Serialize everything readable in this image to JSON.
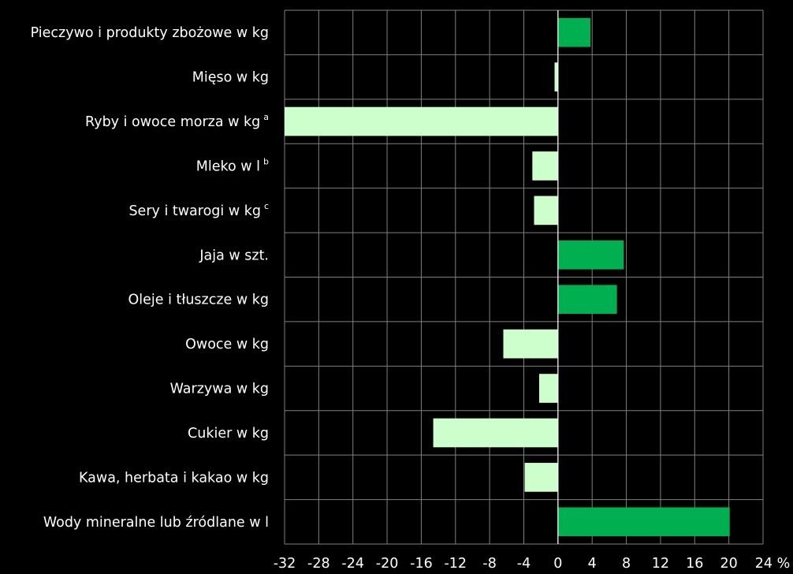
{
  "chart_data": {
    "type": "bar",
    "orientation": "horizontal",
    "categories": [
      {
        "label": "Pieczywo i produkty zbożowe w kg",
        "sup": ""
      },
      {
        "label": "Mięso w kg",
        "sup": ""
      },
      {
        "label": "Ryby i owoce morza w kg",
        "sup": "a"
      },
      {
        "label": "Mleko w l",
        "sup": "b"
      },
      {
        "label": "Sery i twarogi w kg",
        "sup": "c"
      },
      {
        "label": "Jaja w szt.",
        "sup": ""
      },
      {
        "label": "Oleje i tłuszcze w kg",
        "sup": ""
      },
      {
        "label": "Owoce w kg",
        "sup": ""
      },
      {
        "label": "Warzywa w kg",
        "sup": ""
      },
      {
        "label": "Cukier w kg",
        "sup": ""
      },
      {
        "label": "Kawa, herbata i kakao w kg",
        "sup": ""
      },
      {
        "label": "Wody mineralne lub źródlane w l",
        "sup": ""
      }
    ],
    "values": [
      3.8,
      -0.4,
      -32.0,
      -3.0,
      -2.8,
      7.7,
      6.9,
      -6.4,
      -2.2,
      -14.6,
      -3.9,
      20.1
    ],
    "xlim": [
      -32,
      24
    ],
    "x_ticks": [
      -32,
      -28,
      -24,
      -20,
      -16,
      -12,
      -8,
      -4,
      0,
      4,
      8,
      12,
      16,
      20,
      24
    ],
    "x_unit": "%",
    "grid": true,
    "colors": {
      "background": "#000000",
      "positive": "#00b050",
      "negative": "#ccffcc",
      "grid": "#7f7f7f",
      "text": "#ffffff"
    }
  }
}
